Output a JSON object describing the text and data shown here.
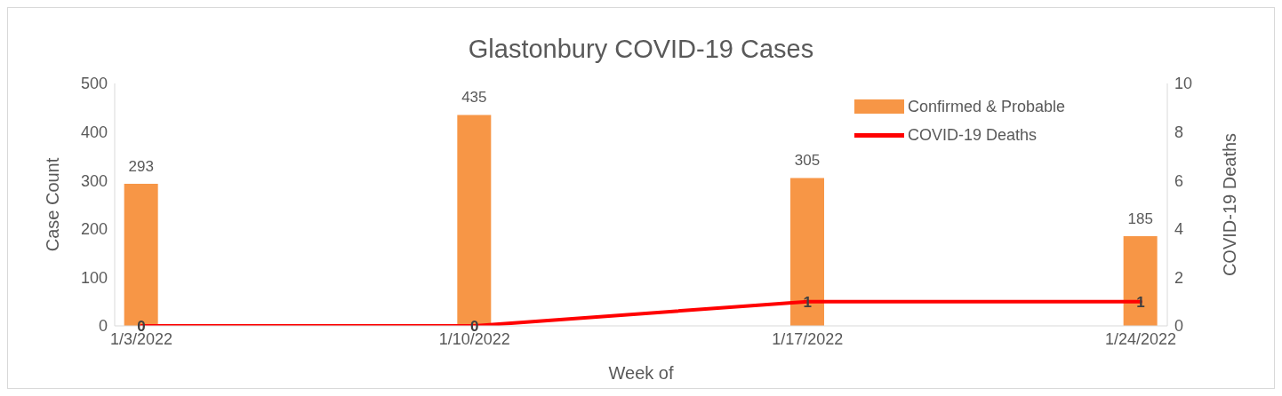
{
  "chart_data": {
    "type": "bar",
    "title": "Glastonbury COVID-19 Cases",
    "xlabel": "Week of",
    "ylabel": "Case Count",
    "y2label": "COVID-19 Deaths",
    "categories": [
      "1/3/2022",
      "1/10/2022",
      "1/17/2022",
      "1/24/2022"
    ],
    "series": [
      {
        "name": "Confirmed & Probable",
        "color": "#f79646",
        "values": [
          293,
          435,
          305,
          185
        ]
      },
      {
        "name": "COVID-19 Deaths",
        "type": "line",
        "color": "#ff0000",
        "axis": "y2",
        "values": [
          0,
          0,
          1,
          1
        ]
      }
    ],
    "ylim": [
      0,
      500
    ],
    "yticks": [
      0,
      100,
      200,
      300,
      400,
      500
    ],
    "y2lim": [
      0,
      10
    ],
    "y2ticks": [
      0,
      2,
      4,
      6,
      8,
      10
    ],
    "data_labels": true,
    "legend": "top right",
    "grid": false
  }
}
